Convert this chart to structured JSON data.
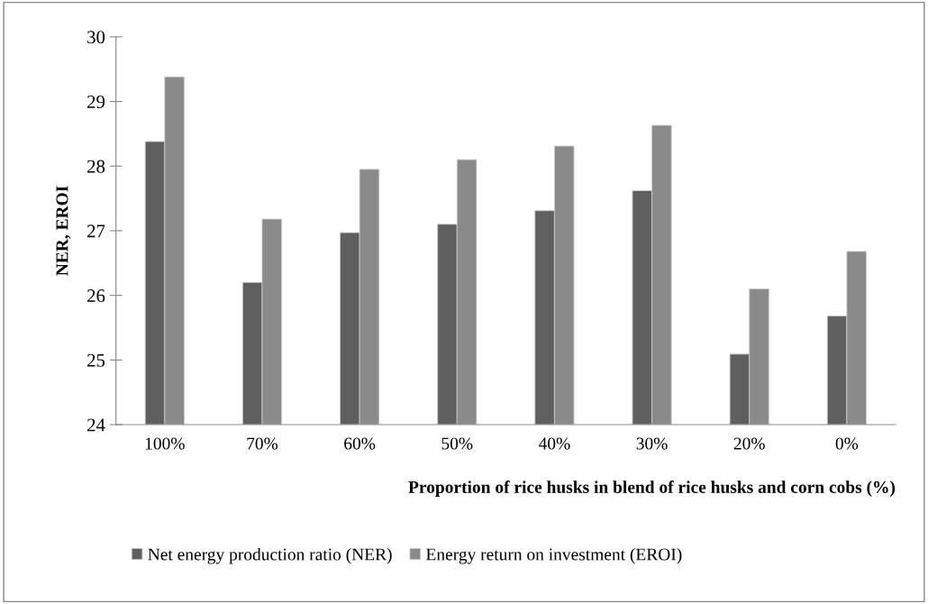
{
  "chart_data": {
    "type": "bar",
    "xlabel": "Proportion of rice husks in blend of rice husks and corn cobs (%)",
    "ylabel": "NER, EROI",
    "categories": [
      "100%",
      "70%",
      "60%",
      "50%",
      "40%",
      "30%",
      "20%",
      "0%"
    ],
    "series": [
      {
        "name": "Net energy production ratio (NER)",
        "color": "#5f5f5f",
        "values": [
          28.38,
          26.2,
          26.97,
          27.1,
          27.31,
          27.62,
          25.09,
          25.68
        ]
      },
      {
        "name": "Energy return on investment (EROI)",
        "color": "#8a8a8a",
        "values": [
          29.38,
          27.18,
          27.95,
          28.1,
          28.31,
          28.63,
          26.1,
          26.68
        ]
      }
    ],
    "ylim": [
      24,
      30
    ],
    "yticks": [
      24,
      25,
      26,
      27,
      28,
      29,
      30
    ],
    "grid": false,
    "legend": "bottom"
  }
}
